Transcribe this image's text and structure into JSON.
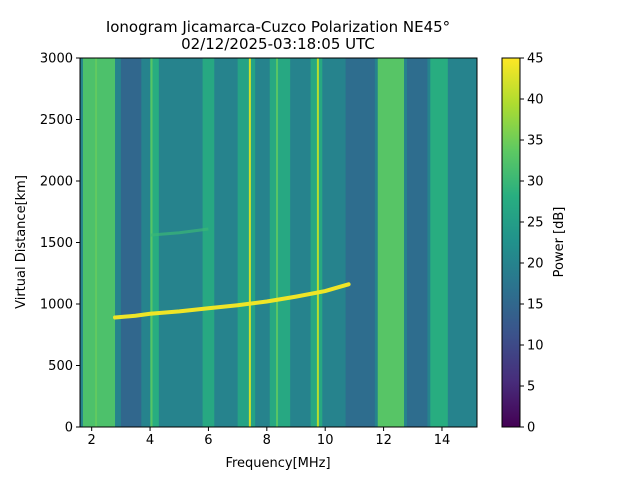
{
  "chart_data": {
    "type": "heatmap",
    "title": "Ionogram Jicamarca-Cuzco Polarization NE45°",
    "subtitle": "02/12/2025-03:18:05 UTC",
    "xlabel": "Frequency[MHz]",
    "ylabel": "Virtual Distance[km]",
    "xlim": [
      1.6,
      15.2
    ],
    "ylim": [
      0,
      3000
    ],
    "x_ticks": [
      2,
      4,
      6,
      8,
      10,
      12,
      14
    ],
    "x_tick_labels": [
      "2",
      "4",
      "6",
      "8",
      "10",
      "12",
      "14"
    ],
    "y_ticks": [
      0,
      500,
      1000,
      1500,
      2000,
      2500,
      3000
    ],
    "y_tick_labels": [
      "0",
      "500",
      "1000",
      "1500",
      "2000",
      "2500",
      "3000"
    ],
    "colorbar": {
      "label": "Power [dB]",
      "colormap": "viridis",
      "range": [
        0,
        45
      ],
      "ticks": [
        0,
        5,
        10,
        15,
        20,
        25,
        30,
        35,
        40,
        45
      ],
      "tick_labels": [
        "0",
        "5",
        "10",
        "15",
        "20",
        "25",
        "30",
        "35",
        "40",
        "45"
      ]
    },
    "background_power_db": 20,
    "bright_bands": [
      {
        "f_min": 1.7,
        "f_max": 2.8,
        "power_db": 32
      },
      {
        "f_min": 4.0,
        "f_max": 4.3,
        "power_db": 28
      },
      {
        "f_min": 5.8,
        "f_max": 6.2,
        "power_db": 27
      },
      {
        "f_min": 7.0,
        "f_max": 7.6,
        "power_db": 26
      },
      {
        "f_min": 8.1,
        "f_max": 8.8,
        "power_db": 27
      },
      {
        "f_min": 9.5,
        "f_max": 9.9,
        "power_db": 27
      },
      {
        "f_min": 11.8,
        "f_max": 12.7,
        "power_db": 33
      },
      {
        "f_min": 13.6,
        "f_max": 14.2,
        "power_db": 28
      }
    ],
    "dark_bands": [
      {
        "f_min": 3.0,
        "f_max": 3.7,
        "power_db": 15
      },
      {
        "f_min": 10.7,
        "f_max": 11.7,
        "power_db": 16
      },
      {
        "f_min": 12.8,
        "f_max": 13.5,
        "power_db": 16
      }
    ],
    "interference_lines": [
      {
        "f": 7.42,
        "power_db": 42
      },
      {
        "f": 8.35,
        "power_db": 33
      },
      {
        "f": 9.75,
        "power_db": 40
      },
      {
        "f": 4.05,
        "power_db": 33
      },
      {
        "f": 2.15,
        "power_db": 34
      }
    ],
    "echo_trace": {
      "label": "F-layer trace",
      "power_db": 44,
      "points": [
        {
          "f": 2.8,
          "d": 890
        },
        {
          "f": 3.5,
          "d": 905
        },
        {
          "f": 4.0,
          "d": 920
        },
        {
          "f": 5.0,
          "d": 940
        },
        {
          "f": 6.0,
          "d": 965
        },
        {
          "f": 7.0,
          "d": 990
        },
        {
          "f": 8.0,
          "d": 1020
        },
        {
          "f": 9.0,
          "d": 1060
        },
        {
          "f": 10.0,
          "d": 1105
        },
        {
          "f": 10.5,
          "d": 1140
        },
        {
          "f": 10.8,
          "d": 1160
        }
      ]
    },
    "faint_trace": {
      "label": "second-hop trace",
      "power_db": 30,
      "points": [
        {
          "f": 4.0,
          "d": 1560
        },
        {
          "f": 5.0,
          "d": 1580
        },
        {
          "f": 6.0,
          "d": 1610
        }
      ]
    }
  }
}
